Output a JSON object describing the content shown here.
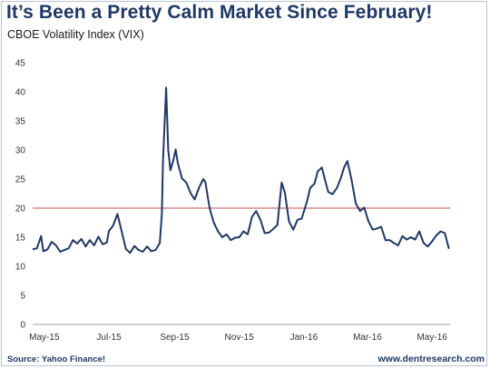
{
  "header": {
    "title": "It’s Been a Pretty Calm Market Since February!",
    "subtitle": "CBOE Volatility Index (VIX)"
  },
  "footer": {
    "source": "Source: Yahoo Finance!",
    "website": "www.dentresearch.com"
  },
  "colors": {
    "title": "#1f3864",
    "series": "#1f3864",
    "threshold": "#c0504d",
    "axis": "#999999"
  },
  "chart_data": {
    "type": "line",
    "title": "It’s Been a Pretty Calm Market Since February!",
    "subtitle": "CBOE Volatility Index (VIX)",
    "xlabel": "",
    "ylabel": "",
    "ylim": [
      0,
      45
    ],
    "yticks": [
      0,
      5,
      10,
      15,
      20,
      25,
      30,
      35,
      40,
      45
    ],
    "xlim": [
      "2015-04-20",
      "2016-05-18"
    ],
    "xticks": [
      {
        "label": "May-15",
        "date": "2015-05-01"
      },
      {
        "label": "Jul-15",
        "date": "2015-07-01"
      },
      {
        "label": "Sep-15",
        "date": "2015-09-01"
      },
      {
        "label": "Nov-15",
        "date": "2015-11-01"
      },
      {
        "label": "Jan-16",
        "date": "2016-01-01"
      },
      {
        "label": "Mar-16",
        "date": "2016-03-01"
      },
      {
        "label": "May-16",
        "date": "2016-05-01"
      }
    ],
    "grid": false,
    "legend": "none",
    "reference_line": {
      "y": 20
    },
    "series": [
      {
        "x": [
          "2015-04-20",
          "2015-04-24",
          "2015-04-28",
          "2015-04-30",
          "2015-05-04",
          "2015-05-08",
          "2015-05-12",
          "2015-05-16",
          "2015-05-20",
          "2015-05-24",
          "2015-05-28",
          "2015-06-01",
          "2015-06-05",
          "2015-06-09",
          "2015-06-13",
          "2015-06-17",
          "2015-06-21",
          "2015-06-25",
          "2015-06-29",
          "2015-07-01",
          "2015-07-05",
          "2015-07-09",
          "2015-07-13",
          "2015-07-17",
          "2015-07-21",
          "2015-07-25",
          "2015-07-29",
          "2015-08-02",
          "2015-08-06",
          "2015-08-10",
          "2015-08-14",
          "2015-08-18",
          "2015-08-20",
          "2015-08-21",
          "2015-08-24",
          "2015-08-26",
          "2015-08-28",
          "2015-08-31",
          "2015-09-02",
          "2015-09-04",
          "2015-09-08",
          "2015-09-12",
          "2015-09-16",
          "2015-09-20",
          "2015-09-24",
          "2015-09-28",
          "2015-09-30",
          "2015-10-04",
          "2015-10-08",
          "2015-10-12",
          "2015-10-16",
          "2015-10-20",
          "2015-10-24",
          "2015-10-28",
          "2015-11-01",
          "2015-11-05",
          "2015-11-09",
          "2015-11-13",
          "2015-11-17",
          "2015-11-21",
          "2015-11-25",
          "2015-11-29",
          "2015-12-03",
          "2015-12-07",
          "2015-12-11",
          "2015-12-14",
          "2015-12-18",
          "2015-12-22",
          "2015-12-26",
          "2015-12-30",
          "2016-01-04",
          "2016-01-07",
          "2016-01-11",
          "2016-01-14",
          "2016-01-18",
          "2016-01-20",
          "2016-01-24",
          "2016-01-28",
          "2016-02-01",
          "2016-02-05",
          "2016-02-08",
          "2016-02-11",
          "2016-02-15",
          "2016-02-19",
          "2016-02-23",
          "2016-02-27",
          "2016-03-02",
          "2016-03-06",
          "2016-03-10",
          "2016-03-14",
          "2016-03-18",
          "2016-03-22",
          "2016-03-26",
          "2016-03-30",
          "2016-04-03",
          "2016-04-07",
          "2016-04-11",
          "2016-04-15",
          "2016-04-19",
          "2016-04-23",
          "2016-04-27",
          "2016-05-01",
          "2016-05-05",
          "2016-05-09",
          "2016-05-13",
          "2016-05-17"
        ],
        "values": [
          12.9,
          13.1,
          15.2,
          12.6,
          12.9,
          14.2,
          13.6,
          12.5,
          12.8,
          13.1,
          14.5,
          13.9,
          14.7,
          13.4,
          14.5,
          13.6,
          15.1,
          13.8,
          14.1,
          16.1,
          17.0,
          19.0,
          16.0,
          13.0,
          12.3,
          13.5,
          12.8,
          12.5,
          13.4,
          12.6,
          12.8,
          14.0,
          19.1,
          28.0,
          40.7,
          30.0,
          26.5,
          28.4,
          30.1,
          27.8,
          25.1,
          24.4,
          22.6,
          21.5,
          23.5,
          25.0,
          24.5,
          20.0,
          17.5,
          16.0,
          15.0,
          15.5,
          14.5,
          14.9,
          15.0,
          16.0,
          15.5,
          18.5,
          19.5,
          18.0,
          15.7,
          15.8,
          16.4,
          17.1,
          24.4,
          22.7,
          17.7,
          16.3,
          18.0,
          18.2,
          21.2,
          23.5,
          24.2,
          26.3,
          27.0,
          25.5,
          22.8,
          22.4,
          23.4,
          25.2,
          27.0,
          28.1,
          24.9,
          20.8,
          19.5,
          20.1,
          17.7,
          16.3,
          16.5,
          16.8,
          14.5,
          14.5,
          14.0,
          13.6,
          15.2,
          14.6,
          15.0,
          14.6,
          16.0,
          14.0,
          13.4,
          14.3,
          15.3,
          16.0,
          15.7,
          13.0
        ]
      }
    ]
  }
}
